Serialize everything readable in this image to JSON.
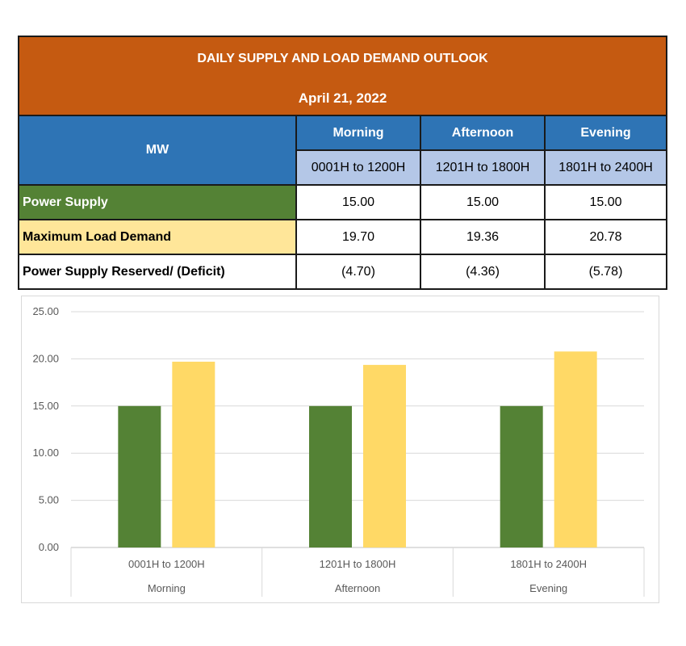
{
  "table": {
    "title": "DAILY SUPPLY AND LOAD DEMAND OUTLOOK",
    "date": "April 21, 2022",
    "unit_label": "MW",
    "periods": [
      {
        "name": "Morning",
        "range": "0001H to 1200H"
      },
      {
        "name": "Afternoon",
        "range": "1201H to 1800H"
      },
      {
        "name": "Evening",
        "range": "1801H to 2400H"
      }
    ],
    "rows": [
      {
        "label": "Power Supply",
        "values": [
          "15.00",
          "15.00",
          "15.00"
        ]
      },
      {
        "label": "Maximum Load Demand",
        "values": [
          "19.70",
          "19.36",
          "20.78"
        ]
      },
      {
        "label": "Power Supply Reserved/ (Deficit)",
        "values": [
          "(4.70)",
          "(4.36)",
          "(5.78)"
        ]
      }
    ]
  },
  "chart_data": {
    "type": "bar",
    "categories": [
      {
        "range": "0001H to 1200H",
        "period": "Morning"
      },
      {
        "range": "1201H to 1800H",
        "period": "Afternoon"
      },
      {
        "range": "1801H to 2400H",
        "period": "Evening"
      }
    ],
    "series": [
      {
        "values": [
          15.0,
          15.0,
          15.0
        ],
        "color": "#548235"
      },
      {
        "values": [
          19.7,
          19.36,
          20.78
        ],
        "color": "#ffd966"
      }
    ],
    "ylim": [
      0,
      25
    ],
    "yticks": [
      "0.00",
      "5.00",
      "10.00",
      "15.00",
      "20.00",
      "25.00"
    ],
    "grid": true
  }
}
